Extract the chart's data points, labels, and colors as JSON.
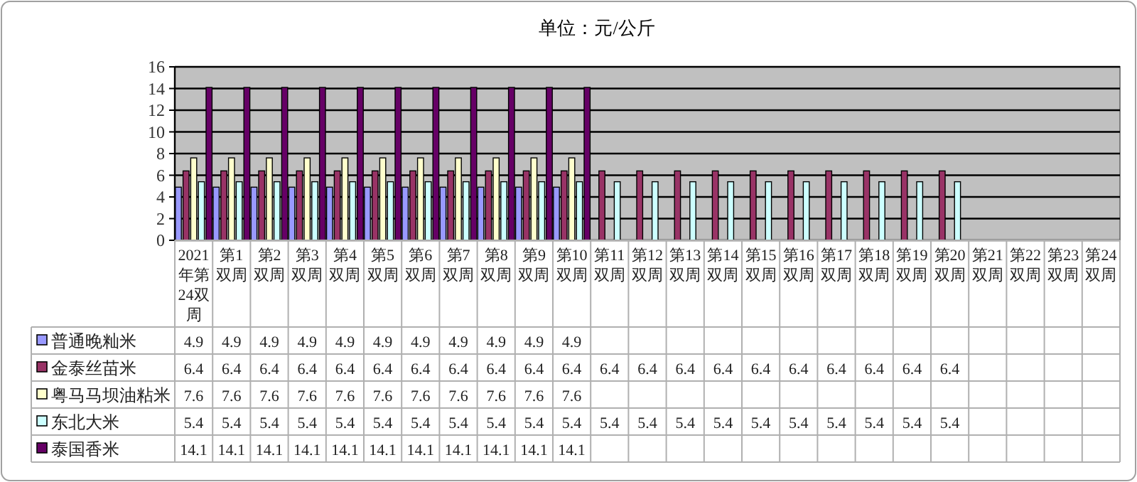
{
  "chart_data": {
    "type": "bar",
    "title": "单位：元/公斤",
    "categories": [
      "2021年第24双周",
      "第1双周",
      "第2双周",
      "第3双周",
      "第4双周",
      "第5双周",
      "第6双周",
      "第7双周",
      "第8双周",
      "第9双周",
      "第10双周",
      "第11双周",
      "第12双周",
      "第13双周",
      "第14双周",
      "第15双周",
      "第16双周",
      "第17双周",
      "第18双周",
      "第19双周",
      "第20双周",
      "第21双周",
      "第22双周",
      "第23双周",
      "第24双周"
    ],
    "series": [
      {
        "name": "普通晚籼米",
        "color": "#9999ff",
        "values": [
          4.9,
          4.9,
          4.9,
          4.9,
          4.9,
          4.9,
          4.9,
          4.9,
          4.9,
          4.9,
          4.9,
          null,
          null,
          null,
          null,
          null,
          null,
          null,
          null,
          null,
          null,
          null,
          null,
          null,
          null
        ]
      },
      {
        "name": "金泰丝苗米",
        "color": "#993366",
        "values": [
          6.4,
          6.4,
          6.4,
          6.4,
          6.4,
          6.4,
          6.4,
          6.4,
          6.4,
          6.4,
          6.4,
          6.4,
          6.4,
          6.4,
          6.4,
          6.4,
          6.4,
          6.4,
          6.4,
          6.4,
          6.4,
          null,
          null,
          null,
          null
        ]
      },
      {
        "name": "粤马马坝油粘米",
        "color": "#ffffcc",
        "values": [
          7.6,
          7.6,
          7.6,
          7.6,
          7.6,
          7.6,
          7.6,
          7.6,
          7.6,
          7.6,
          7.6,
          null,
          null,
          null,
          null,
          null,
          null,
          null,
          null,
          null,
          null,
          null,
          null,
          null,
          null
        ]
      },
      {
        "name": "东北大米",
        "color": "#ccffff",
        "values": [
          5.4,
          5.4,
          5.4,
          5.4,
          5.4,
          5.4,
          5.4,
          5.4,
          5.4,
          5.4,
          5.4,
          5.4,
          5.4,
          5.4,
          5.4,
          5.4,
          5.4,
          5.4,
          5.4,
          5.4,
          5.4,
          null,
          null,
          null,
          null
        ]
      },
      {
        "name": "泰国香米",
        "color": "#660066",
        "values": [
          14.1,
          14.1,
          14.1,
          14.1,
          14.1,
          14.1,
          14.1,
          14.1,
          14.1,
          14.1,
          14.1,
          null,
          null,
          null,
          null,
          null,
          null,
          null,
          null,
          null,
          null,
          null,
          null,
          null,
          null
        ]
      }
    ],
    "ylim": [
      0,
      16
    ],
    "yticks": [
      0,
      2,
      4,
      6,
      8,
      10,
      12,
      14,
      16
    ],
    "grid": "y",
    "legend": "bottom left",
    "data_labels": true
  }
}
